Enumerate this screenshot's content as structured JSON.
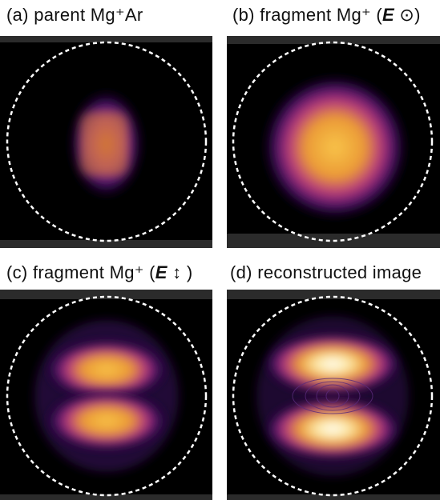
{
  "panels": [
    {
      "label": "(a) parent Mg⁺Ar"
    },
    {
      "label": "(b) fragment Mg⁺ (",
      "polarization": "E",
      "symbol": "⊙",
      "close": ")"
    },
    {
      "label": "(c) fragment Mg⁺ (",
      "polarization": "E",
      "symbol": "↕",
      "close": ")"
    },
    {
      "label": "(d) reconstructed image"
    }
  ]
}
